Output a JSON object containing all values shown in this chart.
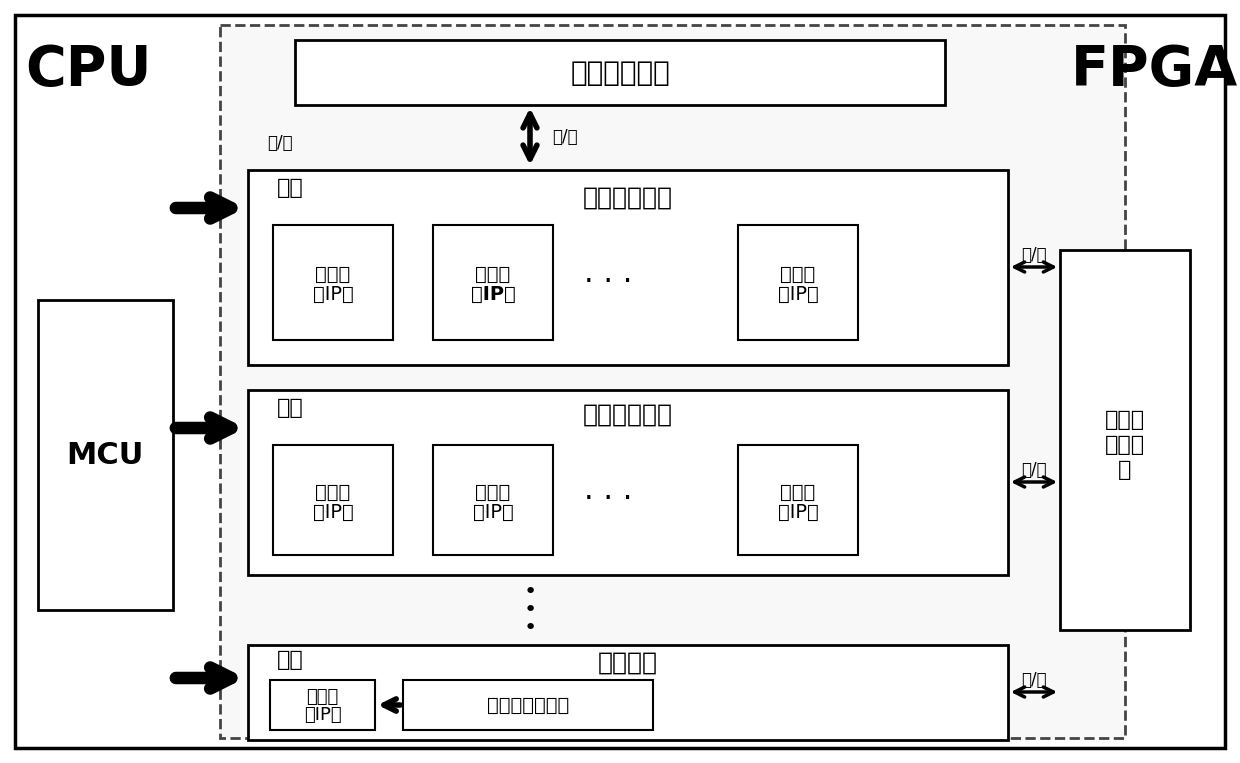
{
  "bg_color": "#ffffff",
  "cpu_label": "CPU",
  "fpga_label": "FPGA",
  "mcu_label": "MCU",
  "param_mem_label": "参数存储模块",
  "conv_layer_label": "冒泡法卷积层",
  "pool_layer_label": "冒泡法池化层",
  "fc_layer_label": "全连接层",
  "feat_mem_line1": "特征图",
  "feat_mem_line2": "存储模",
  "feat_mem_line3": "块",
  "conv_ip_line1": "卷积运",
  "conv_ip_line2": "算IP核",
  "pool_ip_line1": "池化运",
  "pool_ip_line2": "算IP核",
  "fc_ip_line1": "全连接",
  "fc_ip_line2": "层IP核",
  "fc_ctrl_label": "全连接层控制器",
  "read_write": "读/写",
  "cmd_label": "指令"
}
